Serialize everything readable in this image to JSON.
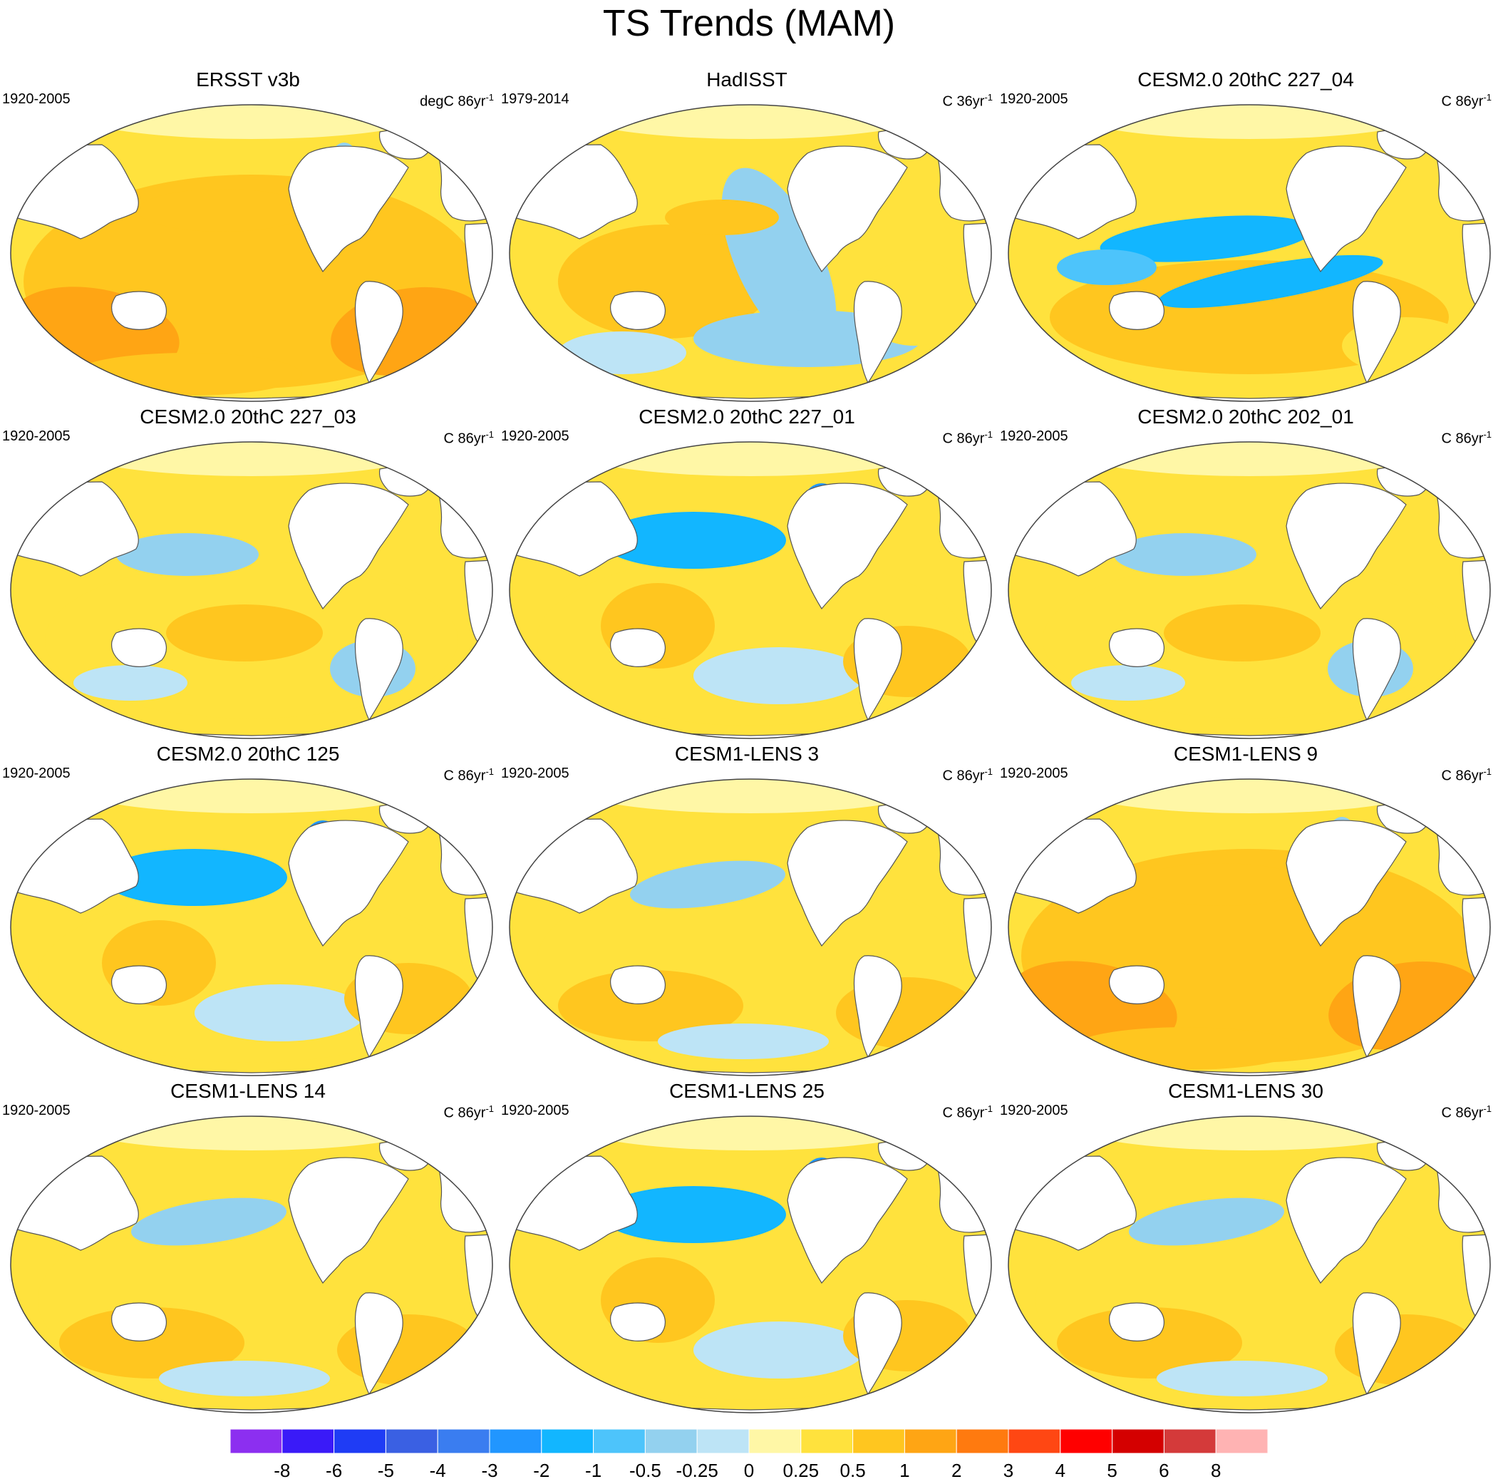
{
  "title": "TS Trends (MAM)",
  "panels": [
    {
      "title": "ERSST v3b",
      "period": "1920-2005",
      "units": "degC 86yr",
      "units_exp": "-1",
      "pattern": "warm"
    },
    {
      "title": "HadISST",
      "period": "1979-2014",
      "units": "C 36yr",
      "units_exp": "-1",
      "pattern": "lanina"
    },
    {
      "title": "CESM2.0 20thC 227_04",
      "period": "1920-2005",
      "units": "C 86yr",
      "units_exp": "-1",
      "pattern": "strongcool"
    },
    {
      "title": "CESM2.0 20thC 227_03",
      "period": "1920-2005",
      "units": "C 86yr",
      "units_exp": "-1",
      "pattern": "mixed"
    },
    {
      "title": "CESM2.0 20thC 227_01",
      "period": "1920-2005",
      "units": "C 86yr",
      "units_exp": "-1",
      "pattern": "npcool"
    },
    {
      "title": "CESM2.0 20thC 202_01",
      "period": "1920-2005",
      "units": "C 86yr",
      "units_exp": "-1",
      "pattern": "mixed"
    },
    {
      "title": "CESM2.0 20thC 125",
      "period": "1920-2005",
      "units": "C 86yr",
      "units_exp": "-1",
      "pattern": "npcool"
    },
    {
      "title": "CESM1-LENS 3",
      "period": "1920-2005",
      "units": "C 86yr",
      "units_exp": "-1",
      "pattern": "warmish"
    },
    {
      "title": "CESM1-LENS 9",
      "period": "1920-2005",
      "units": "C 86yr",
      "units_exp": "-1",
      "pattern": "warm"
    },
    {
      "title": "CESM1-LENS 14",
      "period": "1920-2005",
      "units": "C 86yr",
      "units_exp": "-1",
      "pattern": "warmish"
    },
    {
      "title": "CESM1-LENS 25",
      "period": "1920-2005",
      "units": "C 86yr",
      "units_exp": "-1",
      "pattern": "npcool"
    },
    {
      "title": "CESM1-LENS 30",
      "period": "1920-2005",
      "units": "C 86yr",
      "units_exp": "-1",
      "pattern": "warmish"
    }
  ],
  "colorbar": {
    "colors": [
      "#8c2ff0",
      "#3a1af8",
      "#1f3cf5",
      "#3a60e3",
      "#3a7df0",
      "#2196ff",
      "#12b6ff",
      "#4dc4fb",
      "#93d1ef",
      "#bde4f6",
      "#fff7a6",
      "#ffe23d",
      "#ffc61f",
      "#ffa514",
      "#ff7a0f",
      "#ff4713",
      "#ff0000",
      "#d40000",
      "#d43a3a",
      "#ffb3b3"
    ],
    "labels": [
      "-8",
      "-6",
      "-5",
      "-4",
      "-3",
      "-2",
      "-1",
      "-0.5",
      "-0.25",
      "0",
      "0.25",
      "0.5",
      "1",
      "2",
      "3",
      "4",
      "5",
      "6",
      "8"
    ]
  }
}
